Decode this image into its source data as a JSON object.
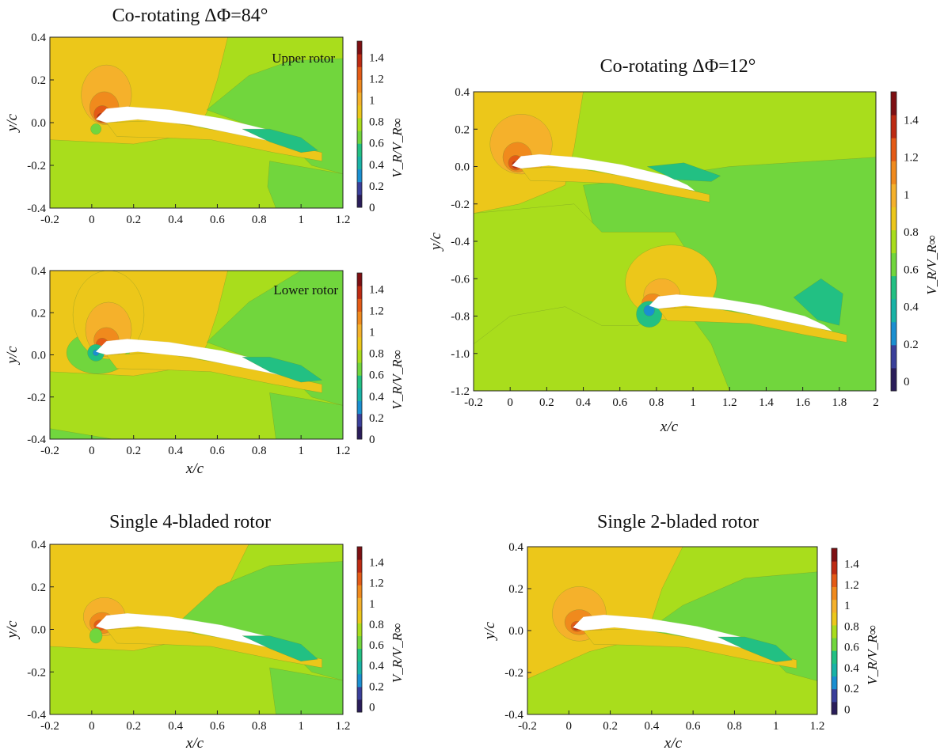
{
  "figure": {
    "colors": {
      "green": "#71d63d",
      "light_green": "#a9dd1c",
      "yellow": "#ecc71a",
      "light_orange": "#f5b12b",
      "orange": "#f08a1d",
      "red_orange": "#e45a16",
      "red": "#bd2a12",
      "dark_red": "#7e0f12",
      "teal": "#22c083",
      "cyan_green": "#19b3a6",
      "blue": "#1a8fd1",
      "dark_blue": "#3a3f9a",
      "navy": "#2a1d5a",
      "blade": "#ffffff",
      "frame": "#222222"
    }
  },
  "chart_data": [
    {
      "id": "co84_upper",
      "type": "heatmap",
      "title": "Co-rotating ΔΦ=84°",
      "annotation": "Upper rotor",
      "xlabel": "",
      "ylabel": "y/c",
      "xlim": [
        -0.2,
        1.2
      ],
      "ylim": [
        -0.4,
        0.4
      ],
      "xticks": [
        "-0.2",
        "0",
        "0.2",
        "0.4",
        "0.6",
        "0.8",
        "1",
        "1.2"
      ],
      "yticks": [
        "-0.4",
        "-0.2",
        "0.0",
        "0.2",
        "0.4"
      ],
      "colorbar_label": "V_R/V_R∞",
      "colorbar_ticks": [
        "0",
        "0.2",
        "0.4",
        "0.6",
        "0.8",
        "1",
        "1.2",
        "1.4"
      ],
      "color_range": [
        0,
        1.55
      ]
    },
    {
      "id": "co84_lower",
      "type": "heatmap",
      "title": "",
      "annotation": "Lower rotor",
      "xlabel": "x/c",
      "ylabel": "y/c",
      "xlim": [
        -0.2,
        1.2
      ],
      "ylim": [
        -0.4,
        0.4
      ],
      "xticks": [
        "-0.2",
        "0",
        "0.2",
        "0.4",
        "0.6",
        "0.8",
        "1",
        "1.2"
      ],
      "yticks": [
        "-0.4",
        "-0.2",
        "0.0",
        "0.2",
        "0.4"
      ],
      "colorbar_label": "V_R/V_R∞",
      "colorbar_ticks": [
        "0",
        "0.2",
        "0.4",
        "0.6",
        "0.8",
        "1",
        "1.2",
        "1.4"
      ],
      "color_range": [
        0,
        1.55
      ]
    },
    {
      "id": "co12",
      "type": "heatmap",
      "title": "Co-rotating ΔΦ=12°",
      "annotation": "",
      "xlabel": "x/c",
      "ylabel": "y/c",
      "xlim": [
        -0.2,
        2.0
      ],
      "ylim": [
        -1.2,
        0.4
      ],
      "xticks": [
        "-0.2",
        "0",
        "0.2",
        "0.4",
        "0.6",
        "0.8",
        "1",
        "1.2",
        "1.4",
        "1.6",
        "1.8",
        "2"
      ],
      "yticks": [
        "-1.2",
        "-1.0",
        "-0.8",
        "-0.6",
        "-0.4",
        "-0.2",
        "0.0",
        "0.2",
        "0.4"
      ],
      "colorbar_label": "V_R/V_R∞",
      "colorbar_ticks": [
        "0",
        "0.2",
        "0.4",
        "0.6",
        "0.8",
        "1",
        "1.2",
        "1.4"
      ],
      "color_range": [
        -0.05,
        1.55
      ]
    },
    {
      "id": "single4",
      "type": "heatmap",
      "title": "Single 4-bladed rotor",
      "annotation": "",
      "xlabel": "x/c",
      "ylabel": "y/c",
      "xlim": [
        -0.2,
        1.2
      ],
      "ylim": [
        -0.4,
        0.4
      ],
      "xticks": [
        "-0.2",
        "0",
        "0.2",
        "0.4",
        "0.6",
        "0.8",
        "1",
        "1.2"
      ],
      "yticks": [
        "-0.4",
        "-0.2",
        "0.0",
        "0.2",
        "0.4"
      ],
      "colorbar_label": "V_R/V_R∞",
      "colorbar_ticks": [
        "0",
        "0.2",
        "0.4",
        "0.6",
        "0.8",
        "1",
        "1.2",
        "1.4"
      ],
      "color_range": [
        -0.05,
        1.55
      ]
    },
    {
      "id": "single2",
      "type": "heatmap",
      "title": "Single 2-bladed rotor",
      "annotation": "",
      "xlabel": "x/c",
      "ylabel": "y/c",
      "xlim": [
        -0.2,
        1.2
      ],
      "ylim": [
        -0.4,
        0.4
      ],
      "xticks": [
        "-0.2",
        "0",
        "0.2",
        "0.4",
        "0.6",
        "0.8",
        "1",
        "1.2"
      ],
      "yticks": [
        "-0.4",
        "-0.2",
        "0.0",
        "0.2",
        "0.4"
      ],
      "colorbar_label": "V_R/V_R∞",
      "colorbar_ticks": [
        "0",
        "0.2",
        "0.4",
        "0.6",
        "0.8",
        "1",
        "1.2",
        "1.4"
      ],
      "color_range": [
        -0.05,
        1.55
      ]
    }
  ]
}
